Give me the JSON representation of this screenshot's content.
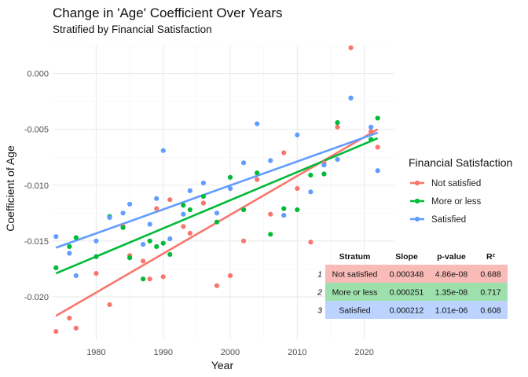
{
  "chart_data": {
    "type": "scatter",
    "title": "Change in 'Age' Coefficient Over Years",
    "subtitle": "Stratified by Financial Satisfaction",
    "xlabel": "Year",
    "ylabel": "Coefficient of Age",
    "xlim": [
      1973.5,
      2024.5
    ],
    "ylim": [
      -0.0238,
      0.0025
    ],
    "x_ticks": [
      1980,
      1990,
      2000,
      2010,
      2020
    ],
    "x_tick_labels": [
      "1980",
      "1990",
      "2000",
      "2010",
      "2020"
    ],
    "y_ticks": [
      0,
      -0.005,
      -0.01,
      -0.015,
      -0.02
    ],
    "y_tick_labels": [
      "0.000",
      "-0.005",
      "-0.010",
      "-0.015",
      "-0.020"
    ],
    "grid": true,
    "legend": {
      "title": "Financial Satisfaction",
      "placement": "right"
    },
    "series": [
      {
        "name": "Not satisfied",
        "color": "#F8766D",
        "points": [
          {
            "x": 1974,
            "y": -0.0231
          },
          {
            "x": 1976,
            "y": -0.0219
          },
          {
            "x": 1977,
            "y": -0.0228
          },
          {
            "x": 1980,
            "y": -0.0179
          },
          {
            "x": 1982,
            "y": -0.0207
          },
          {
            "x": 1984,
            "y": -0.0137
          },
          {
            "x": 1985,
            "y": -0.0163
          },
          {
            "x": 1987,
            "y": -0.0168
          },
          {
            "x": 1988,
            "y": -0.0184
          },
          {
            "x": 1989,
            "y": -0.0121
          },
          {
            "x": 1990,
            "y": -0.0182
          },
          {
            "x": 1991,
            "y": -0.0113
          },
          {
            "x": 1993,
            "y": -0.0137
          },
          {
            "x": 1994,
            "y": -0.0143
          },
          {
            "x": 1996,
            "y": -0.0116
          },
          {
            "x": 1998,
            "y": -0.019
          },
          {
            "x": 2000,
            "y": -0.0181
          },
          {
            "x": 2002,
            "y": -0.015
          },
          {
            "x": 2004,
            "y": -0.0095
          },
          {
            "x": 2006,
            "y": -0.0126
          },
          {
            "x": 2008,
            "y": -0.0071
          },
          {
            "x": 2010,
            "y": -0.0103
          },
          {
            "x": 2012,
            "y": -0.0151
          },
          {
            "x": 2014,
            "y": -0.008
          },
          {
            "x": 2016,
            "y": -0.0048
          },
          {
            "x": 2018,
            "y": 0.0023
          },
          {
            "x": 2021,
            "y": -0.0052
          },
          {
            "x": 2022,
            "y": -0.0066
          }
        ],
        "fit": {
          "x": [
            1974,
            2022
          ],
          "y": [
            -0.0217,
            -0.005
          ]
        }
      },
      {
        "name": "More or less",
        "color": "#00BA38",
        "points": [
          {
            "x": 1974,
            "y": -0.0174
          },
          {
            "x": 1976,
            "y": -0.0155
          },
          {
            "x": 1977,
            "y": -0.0147
          },
          {
            "x": 1980,
            "y": -0.0164
          },
          {
            "x": 1982,
            "y": -0.0128
          },
          {
            "x": 1984,
            "y": -0.0138
          },
          {
            "x": 1985,
            "y": -0.0165
          },
          {
            "x": 1987,
            "y": -0.0184
          },
          {
            "x": 1988,
            "y": -0.015
          },
          {
            "x": 1989,
            "y": -0.0155
          },
          {
            "x": 1990,
            "y": -0.0152
          },
          {
            "x": 1991,
            "y": -0.0162
          },
          {
            "x": 1993,
            "y": -0.0118
          },
          {
            "x": 1994,
            "y": -0.0122
          },
          {
            "x": 1996,
            "y": -0.011
          },
          {
            "x": 1998,
            "y": -0.0133
          },
          {
            "x": 2000,
            "y": -0.0093
          },
          {
            "x": 2002,
            "y": -0.0122
          },
          {
            "x": 2004,
            "y": -0.0089
          },
          {
            "x": 2006,
            "y": -0.0144
          },
          {
            "x": 2008,
            "y": -0.0121
          },
          {
            "x": 2010,
            "y": -0.0122
          },
          {
            "x": 2012,
            "y": -0.0091
          },
          {
            "x": 2014,
            "y": -0.009
          },
          {
            "x": 2016,
            "y": -0.0044
          },
          {
            "x": 2018,
            "y": -0.0022
          },
          {
            "x": 2021,
            "y": -0.0059
          },
          {
            "x": 2022,
            "y": -0.004
          }
        ],
        "fit": {
          "x": [
            1974,
            2022
          ],
          "y": [
            -0.0179,
            -0.0058
          ]
        }
      },
      {
        "name": "Satisfied",
        "color": "#619CFF",
        "points": [
          {
            "x": 1974,
            "y": -0.0146
          },
          {
            "x": 1976,
            "y": -0.0161
          },
          {
            "x": 1977,
            "y": -0.0181
          },
          {
            "x": 1980,
            "y": -0.015
          },
          {
            "x": 1982,
            "y": -0.0129
          },
          {
            "x": 1984,
            "y": -0.0125
          },
          {
            "x": 1985,
            "y": -0.0117
          },
          {
            "x": 1987,
            "y": -0.0153
          },
          {
            "x": 1988,
            "y": -0.0135
          },
          {
            "x": 1989,
            "y": -0.0112
          },
          {
            "x": 1990,
            "y": -0.0069
          },
          {
            "x": 1991,
            "y": -0.0148
          },
          {
            "x": 1993,
            "y": -0.0126
          },
          {
            "x": 1994,
            "y": -0.0105
          },
          {
            "x": 1996,
            "y": -0.0098
          },
          {
            "x": 1998,
            "y": -0.0125
          },
          {
            "x": 2000,
            "y": -0.0103
          },
          {
            "x": 2002,
            "y": -0.008
          },
          {
            "x": 2004,
            "y": -0.0045
          },
          {
            "x": 2006,
            "y": -0.0078
          },
          {
            "x": 2008,
            "y": -0.0127
          },
          {
            "x": 2010,
            "y": -0.0055
          },
          {
            "x": 2012,
            "y": -0.0106
          },
          {
            "x": 2014,
            "y": -0.0082
          },
          {
            "x": 2016,
            "y": -0.0077
          },
          {
            "x": 2018,
            "y": -0.0022
          },
          {
            "x": 2021,
            "y": -0.0048
          },
          {
            "x": 2022,
            "y": -0.0087
          }
        ],
        "fit": {
          "x": [
            1974,
            2022
          ],
          "y": [
            -0.0156,
            -0.0053
          ]
        }
      }
    ],
    "table": {
      "columns": [
        "",
        "Stratum",
        "Slope",
        "p-value",
        "R²"
      ],
      "rows": [
        {
          "index": "1",
          "stratum": "Not satisfied",
          "slope": "0.000348",
          "p_value": "4.86e-08",
          "r2": "0.688",
          "color": "#F8BBB7"
        },
        {
          "index": "2",
          "stratum": "More or less",
          "slope": "0.000251",
          "p_value": "1.35e-08",
          "r2": "0.717",
          "color": "#9EE0AC"
        },
        {
          "index": "3",
          "stratum": "Satisfied",
          "slope": "0.000212",
          "p_value": "1.01e-06",
          "r2": "0.608",
          "color": "#BCD3FF"
        }
      ]
    }
  }
}
